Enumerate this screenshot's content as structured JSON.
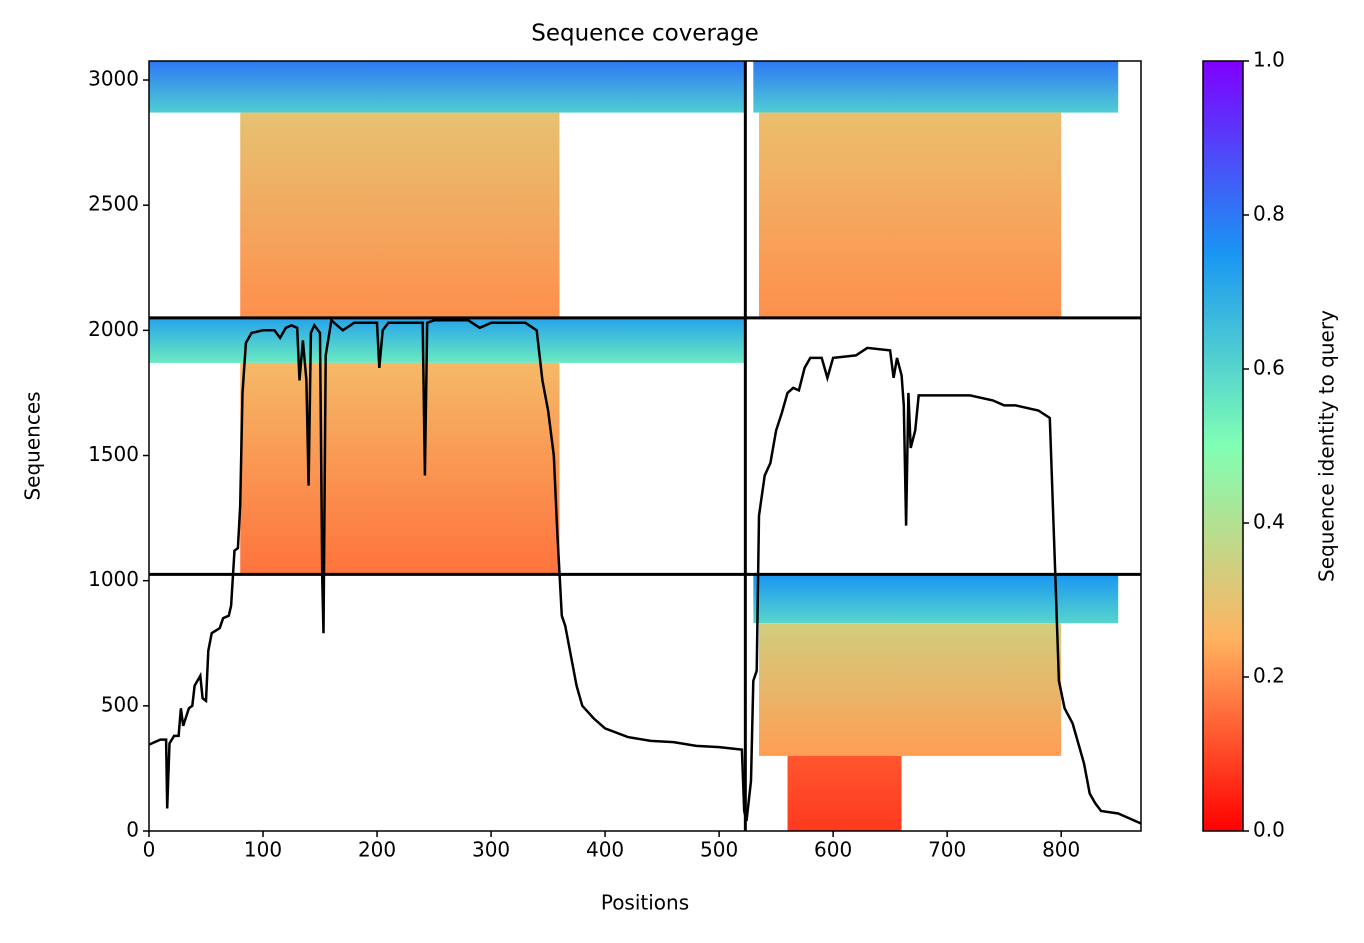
{
  "chart_data": {
    "type": "heatmap",
    "title": "Sequence coverage",
    "xlabel": "Positions",
    "ylabel": "Sequences",
    "xlim": [
      0,
      870
    ],
    "ylim": [
      0,
      3076
    ],
    "xticks": [
      0,
      100,
      200,
      300,
      400,
      500,
      600,
      700,
      800
    ],
    "yticks": [
      0,
      500,
      1000,
      1500,
      2000,
      2500,
      3000
    ],
    "blocks": [
      {
        "x": [
          0,
          523
        ],
        "y": [
          2870,
          3076
        ],
        "identity": [
          0.62,
          0.8
        ]
      },
      {
        "x": [
          80,
          360
        ],
        "y": [
          2050,
          2870
        ],
        "identity": [
          0.2,
          0.3
        ]
      },
      {
        "x": [
          530,
          850
        ],
        "y": [
          2870,
          3076
        ],
        "identity": [
          0.62,
          0.8
        ]
      },
      {
        "x": [
          535,
          800
        ],
        "y": [
          2050,
          2870
        ],
        "identity": [
          0.2,
          0.29
        ]
      },
      {
        "x": [
          0,
          523
        ],
        "y": [
          1870,
          2050
        ],
        "identity": [
          0.55,
          0.72
        ]
      },
      {
        "x": [
          80,
          360
        ],
        "y": [
          1030,
          1870
        ],
        "identity": [
          0.16,
          0.27
        ]
      },
      {
        "x": [
          530,
          850
        ],
        "y": [
          830,
          1025
        ],
        "identity": [
          0.6,
          0.75
        ]
      },
      {
        "x": [
          535,
          800
        ],
        "y": [
          300,
          830
        ],
        "identity": [
          0.22,
          0.34
        ]
      },
      {
        "x": [
          560,
          660
        ],
        "y": [
          0,
          300
        ],
        "identity": [
          0.08,
          0.12
        ]
      }
    ],
    "dividers": {
      "x": [
        523
      ],
      "y": [
        1025,
        2050
      ]
    },
    "coverage": {
      "color": "#000000",
      "x": [
        0,
        10,
        15,
        16,
        18,
        22,
        26,
        28,
        30,
        35,
        38,
        40,
        45,
        47,
        50,
        52,
        55,
        62,
        65,
        70,
        72,
        75,
        78,
        80,
        82,
        85,
        90,
        100,
        110,
        115,
        120,
        125,
        130,
        132,
        135,
        138,
        140,
        142,
        145,
        150,
        152,
        153,
        155,
        160,
        170,
        180,
        200,
        202,
        205,
        210,
        240,
        242,
        244,
        250,
        280,
        290,
        300,
        330,
        340,
        345,
        350,
        355,
        358,
        362,
        365,
        370,
        375,
        380,
        390,
        400,
        420,
        440,
        460,
        480,
        500,
        520,
        522,
        524,
        528,
        530,
        533,
        535,
        540,
        545,
        550,
        555,
        560,
        565,
        570,
        575,
        580,
        590,
        595,
        600,
        620,
        630,
        650,
        653,
        656,
        660,
        662,
        664,
        666,
        668,
        672,
        675,
        700,
        720,
        740,
        750,
        760,
        780,
        790,
        795,
        798,
        803,
        810,
        815,
        820,
        825,
        830,
        835,
        850,
        865,
        870
      ],
      "values": [
        345,
        365,
        365,
        90,
        350,
        380,
        380,
        490,
        420,
        490,
        500,
        580,
        620,
        530,
        520,
        720,
        790,
        810,
        850,
        860,
        900,
        1120,
        1130,
        1300,
        1750,
        1950,
        1990,
        2000,
        2000,
        1970,
        2010,
        2020,
        2010,
        1800,
        1960,
        1800,
        1380,
        1990,
        2020,
        1990,
        1000,
        790,
        1900,
        2040,
        2000,
        2030,
        2030,
        1850,
        2000,
        2030,
        2030,
        1420,
        2030,
        2040,
        2040,
        2010,
        2030,
        2030,
        2000,
        1800,
        1680,
        1500,
        1200,
        860,
        820,
        700,
        580,
        500,
        450,
        410,
        375,
        360,
        355,
        340,
        335,
        325,
        80,
        40,
        200,
        600,
        640,
        1260,
        1420,
        1470,
        1600,
        1670,
        1750,
        1770,
        1760,
        1850,
        1890,
        1890,
        1810,
        1890,
        1900,
        1930,
        1920,
        1810,
        1890,
        1820,
        1700,
        1220,
        1750,
        1530,
        1600,
        1740,
        1740,
        1740,
        1720,
        1700,
        1700,
        1680,
        1650,
        1000,
        600,
        490,
        430,
        350,
        270,
        150,
        110,
        80,
        70,
        40,
        30
      ]
    },
    "colorbar": {
      "label": "Sequence identity to query",
      "lim": [
        0,
        1
      ],
      "ticks": [
        {
          "value": 0,
          "label": "0.0"
        },
        0.2,
        0.4,
        0.6,
        0.8,
        {
          "value": 1,
          "label": "1.0"
        }
      ]
    }
  }
}
